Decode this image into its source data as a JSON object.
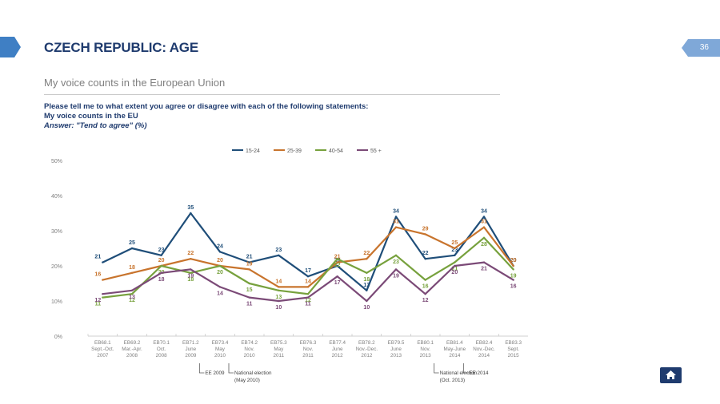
{
  "header": {
    "title": "CZECH REPUBLIC: AGE",
    "page_number": "36"
  },
  "subtitle": "My voice counts in the European Union",
  "question": {
    "line1": "Please tell me to what extent you agree or disagree with each of the following statements:",
    "line2": "My voice counts in the EU",
    "line3": "Answer: \"Tend to agree\" (%)"
  },
  "colors": {
    "brand": "#1f3b6e",
    "tab": "#3f7fc4"
  },
  "icons": {
    "home": "home-icon"
  },
  "chart_data": {
    "type": "line",
    "categories": [
      [
        "EB68.1",
        "Sept.-Oct.",
        "2007"
      ],
      [
        "EB69.2",
        "Mar.-Apr.",
        "2008"
      ],
      [
        "EB70.1",
        "Oct.",
        "2008"
      ],
      [
        "EB71.2",
        "June",
        "2009"
      ],
      [
        "EB73.4",
        "May",
        "2010"
      ],
      [
        "EB74.2",
        "Nov.",
        "2010"
      ],
      [
        "EB75.3",
        "May",
        "2011"
      ],
      [
        "EB76.3",
        "Nov.",
        "2011"
      ],
      [
        "EB77.4",
        "June",
        "2012"
      ],
      [
        "EB78.2",
        "Nov.-Dec.",
        "2012"
      ],
      [
        "EB79.5",
        "June",
        "2013"
      ],
      [
        "EB80.1",
        "Nov.",
        "2013"
      ],
      [
        "EB81.4",
        "May-June",
        "2014"
      ],
      [
        "EB82.4",
        "Nov.-Dec.",
        "2014"
      ],
      [
        "EB83.3",
        "Sept.",
        "2015"
      ]
    ],
    "y_ticks": [
      "0%",
      "10%",
      "20%",
      "30%",
      "40%",
      "50%"
    ],
    "ylim": [
      0,
      50
    ],
    "series": [
      {
        "name": "15-24",
        "color": "#1f4e79",
        "values": [
          21,
          25,
          23,
          35,
          24,
          21,
          23,
          17,
          20,
          13,
          34,
          22,
          23,
          34,
          20
        ]
      },
      {
        "name": "25-39",
        "color": "#c8742d",
        "values": [
          16,
          18,
          20,
          22,
          20,
          19,
          14,
          14,
          21,
          22,
          31,
          29,
          25,
          31,
          20
        ]
      },
      {
        "name": "40-54",
        "color": "#77a13d",
        "values": [
          11,
          12,
          20,
          18,
          20,
          15,
          13,
          12,
          22,
          18,
          23,
          16,
          21,
          28,
          19
        ]
      },
      {
        "name": "55 +",
        "color": "#7b4a77",
        "values": [
          12,
          13,
          18,
          19,
          14,
          11,
          10,
          11,
          17,
          10,
          19,
          12,
          20,
          21,
          16
        ]
      }
    ],
    "annotations": [
      {
        "text": "EE 2009",
        "category_index": 3
      },
      {
        "text": "National election",
        "text2": "(May 2010)",
        "category_index": 4
      },
      {
        "text": "National election",
        "text2": "(Oct. 2013)",
        "category_index": 11
      },
      {
        "text": "EE 2014",
        "category_index": 12
      }
    ],
    "legend_position": "top"
  }
}
